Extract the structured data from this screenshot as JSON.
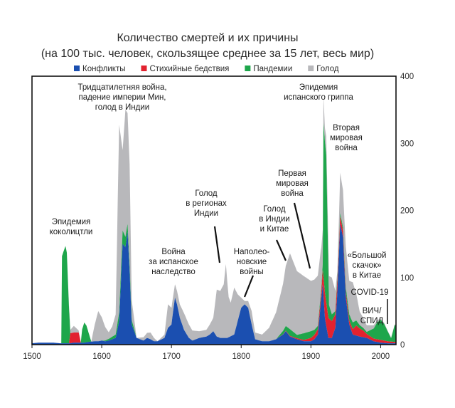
{
  "chart_data": {
    "type": "area",
    "stacked": true,
    "title": "Количество смертей и их причины",
    "subtitle": "(на 100 тыс. человек, скользящее среднее за 15 лет, весь мир)",
    "xlabel": "",
    "ylabel": "",
    "xlim": [
      1500,
      2022
    ],
    "ylim": [
      0,
      400
    ],
    "x_ticks": [
      1500,
      1600,
      1700,
      1800,
      1900,
      2000
    ],
    "y_ticks": [
      0,
      100,
      200,
      300,
      400
    ],
    "y_axis_side": "right",
    "grid": false,
    "legend_position": "top",
    "legend": [
      {
        "name": "Конфликты",
        "color": "#1b4fb0"
      },
      {
        "name": "Стихийные бедствия",
        "color": "#e2222f"
      },
      {
        "name": "Пандемии",
        "color": "#1ea64b"
      },
      {
        "name": "Голод",
        "color": "#b8b8bb"
      }
    ],
    "series": [
      {
        "name": "Конфликты",
        "color": "#1b4fb0",
        "points": [
          [
            1500,
            2
          ],
          [
            1510,
            3
          ],
          [
            1520,
            3
          ],
          [
            1530,
            3
          ],
          [
            1540,
            2
          ],
          [
            1545,
            2
          ],
          [
            1550,
            2
          ],
          [
            1555,
            2
          ],
          [
            1560,
            3
          ],
          [
            1570,
            3
          ],
          [
            1575,
            3
          ],
          [
            1580,
            4
          ],
          [
            1590,
            5
          ],
          [
            1595,
            5
          ],
          [
            1600,
            6
          ],
          [
            1605,
            5
          ],
          [
            1610,
            6
          ],
          [
            1615,
            8
          ],
          [
            1620,
            10
          ],
          [
            1625,
            35
          ],
          [
            1630,
            150
          ],
          [
            1634,
            145
          ],
          [
            1637,
            168
          ],
          [
            1640,
            110
          ],
          [
            1643,
            30
          ],
          [
            1650,
            10
          ],
          [
            1655,
            8
          ],
          [
            1660,
            6
          ],
          [
            1665,
            10
          ],
          [
            1670,
            8
          ],
          [
            1675,
            5
          ],
          [
            1680,
            5
          ],
          [
            1690,
            10
          ],
          [
            1695,
            25
          ],
          [
            1700,
            30
          ],
          [
            1705,
            70
          ],
          [
            1708,
            60
          ],
          [
            1712,
            40
          ],
          [
            1718,
            22
          ],
          [
            1725,
            10
          ],
          [
            1730,
            6
          ],
          [
            1740,
            10
          ],
          [
            1750,
            12
          ],
          [
            1755,
            15
          ],
          [
            1760,
            20
          ],
          [
            1765,
            12
          ],
          [
            1770,
            10
          ],
          [
            1780,
            10
          ],
          [
            1790,
            15
          ],
          [
            1795,
            35
          ],
          [
            1800,
            55
          ],
          [
            1805,
            60
          ],
          [
            1810,
            55
          ],
          [
            1815,
            30
          ],
          [
            1820,
            8
          ],
          [
            1830,
            5
          ],
          [
            1840,
            5
          ],
          [
            1850,
            8
          ],
          [
            1860,
            15
          ],
          [
            1864,
            20
          ],
          [
            1870,
            12
          ],
          [
            1880,
            8
          ],
          [
            1890,
            5
          ],
          [
            1900,
            5
          ],
          [
            1905,
            8
          ],
          [
            1910,
            15
          ],
          [
            1914,
            60
          ],
          [
            1917,
            90
          ],
          [
            1920,
            40
          ],
          [
            1925,
            10
          ],
          [
            1930,
            10
          ],
          [
            1935,
            25
          ],
          [
            1938,
            80
          ],
          [
            1942,
            180
          ],
          [
            1946,
            160
          ],
          [
            1950,
            70
          ],
          [
            1955,
            30
          ],
          [
            1960,
            15
          ],
          [
            1970,
            12
          ],
          [
            1980,
            10
          ],
          [
            1990,
            5
          ],
          [
            2000,
            3
          ],
          [
            2010,
            2
          ],
          [
            2020,
            2
          ]
        ]
      },
      {
        "name": "Стихийные бедствия",
        "color": "#e2222f",
        "points": [
          [
            1500,
            0
          ],
          [
            1550,
            0
          ],
          [
            1553,
            0
          ],
          [
            1555,
            15
          ],
          [
            1560,
            15
          ],
          [
            1567,
            15
          ],
          [
            1570,
            0
          ],
          [
            1600,
            0
          ],
          [
            1700,
            0
          ],
          [
            1800,
            0
          ],
          [
            1850,
            0
          ],
          [
            1870,
            1
          ],
          [
            1890,
            2
          ],
          [
            1900,
            5
          ],
          [
            1910,
            8
          ],
          [
            1915,
            10
          ],
          [
            1920,
            38
          ],
          [
            1925,
            30
          ],
          [
            1930,
            25
          ],
          [
            1935,
            20
          ],
          [
            1940,
            12
          ],
          [
            1945,
            10
          ],
          [
            1950,
            8
          ],
          [
            1955,
            6
          ],
          [
            1960,
            8
          ],
          [
            1965,
            15
          ],
          [
            1970,
            12
          ],
          [
            1975,
            10
          ],
          [
            1980,
            6
          ],
          [
            1990,
            4
          ],
          [
            2000,
            4
          ],
          [
            2010,
            3
          ],
          [
            2020,
            2
          ]
        ]
      },
      {
        "name": "Пандемии",
        "color": "#1ea64b",
        "points": [
          [
            1500,
            0
          ],
          [
            1540,
            0
          ],
          [
            1542,
            0
          ],
          [
            1543,
            130
          ],
          [
            1548,
            145
          ],
          [
            1550,
            135
          ],
          [
            1555,
            0
          ],
          [
            1570,
            0
          ],
          [
            1572,
            20
          ],
          [
            1575,
            30
          ],
          [
            1578,
            25
          ],
          [
            1585,
            0
          ],
          [
            1600,
            0
          ],
          [
            1620,
            5
          ],
          [
            1630,
            20
          ],
          [
            1637,
            12
          ],
          [
            1645,
            5
          ],
          [
            1650,
            0
          ],
          [
            1700,
            0
          ],
          [
            1800,
            0
          ],
          [
            1850,
            0
          ],
          [
            1870,
            10
          ],
          [
            1880,
            5
          ],
          [
            1890,
            10
          ],
          [
            1900,
            10
          ],
          [
            1910,
            5
          ],
          [
            1915,
            5
          ],
          [
            1917,
            10
          ],
          [
            1918,
            230
          ],
          [
            1922,
            220
          ],
          [
            1926,
            20
          ],
          [
            1930,
            10
          ],
          [
            1935,
            5
          ],
          [
            1940,
            5
          ],
          [
            1945,
            5
          ],
          [
            1950,
            8
          ],
          [
            1960,
            10
          ],
          [
            1970,
            5
          ],
          [
            1980,
            3
          ],
          [
            1990,
            15
          ],
          [
            1995,
            25
          ],
          [
            2000,
            30
          ],
          [
            2005,
            25
          ],
          [
            2010,
            15
          ],
          [
            2015,
            5
          ],
          [
            2020,
            25
          ]
        ]
      },
      {
        "name": "Голод",
        "color": "#b8b8bb",
        "points": [
          [
            1500,
            0
          ],
          [
            1540,
            0
          ],
          [
            1550,
            0
          ],
          [
            1560,
            10
          ],
          [
            1570,
            0
          ],
          [
            1585,
            0
          ],
          [
            1590,
            25
          ],
          [
            1595,
            45
          ],
          [
            1600,
            35
          ],
          [
            1605,
            20
          ],
          [
            1610,
            10
          ],
          [
            1615,
            15
          ],
          [
            1620,
            30
          ],
          [
            1625,
            280
          ],
          [
            1630,
            120
          ],
          [
            1634,
            190
          ],
          [
            1637,
            165
          ],
          [
            1640,
            150
          ],
          [
            1643,
            30
          ],
          [
            1650,
            0
          ],
          [
            1660,
            5
          ],
          [
            1670,
            10
          ],
          [
            1680,
            0
          ],
          [
            1690,
            5
          ],
          [
            1695,
            35
          ],
          [
            1700,
            25
          ],
          [
            1705,
            20
          ],
          [
            1708,
            20
          ],
          [
            1712,
            20
          ],
          [
            1718,
            25
          ],
          [
            1725,
            20
          ],
          [
            1730,
            15
          ],
          [
            1740,
            10
          ],
          [
            1750,
            10
          ],
          [
            1755,
            15
          ],
          [
            1760,
            20
          ],
          [
            1765,
            70
          ],
          [
            1770,
            70
          ],
          [
            1775,
            80
          ],
          [
            1778,
            110
          ],
          [
            1782,
            60
          ],
          [
            1785,
            50
          ],
          [
            1790,
            70
          ],
          [
            1795,
            40
          ],
          [
            1800,
            15
          ],
          [
            1805,
            5
          ],
          [
            1810,
            10
          ],
          [
            1815,
            20
          ],
          [
            1820,
            10
          ],
          [
            1830,
            10
          ],
          [
            1840,
            20
          ],
          [
            1850,
            40
          ],
          [
            1860,
            70
          ],
          [
            1864,
            90
          ],
          [
            1870,
            113
          ],
          [
            1880,
            95
          ],
          [
            1890,
            85
          ],
          [
            1900,
            75
          ],
          [
            1905,
            75
          ],
          [
            1910,
            75
          ],
          [
            1914,
            65
          ],
          [
            1917,
            50
          ],
          [
            1920,
            20
          ],
          [
            1925,
            40
          ],
          [
            1930,
            55
          ],
          [
            1935,
            30
          ],
          [
            1938,
            10
          ],
          [
            1942,
            60
          ],
          [
            1946,
            55
          ],
          [
            1950,
            60
          ],
          [
            1955,
            50
          ],
          [
            1960,
            60
          ],
          [
            1965,
            40
          ],
          [
            1970,
            20
          ],
          [
            1980,
            10
          ],
          [
            1990,
            5
          ],
          [
            2000,
            2
          ],
          [
            2010,
            1
          ],
          [
            2020,
            1
          ]
        ]
      }
    ],
    "annotations": [
      {
        "lines": [
          "Эпидемия",
          "коколицтли"
        ],
        "x": 1548,
        "y": 150
      },
      {
        "lines": [
          "Тридцатилетняя война,",
          "падение империи Мин,",
          "голод в Индии"
        ],
        "x": 1634,
        "y": 340
      },
      {
        "lines": [
          "Война",
          "за испанское",
          "наследство"
        ],
        "x": 1705,
        "y": 100
      },
      {
        "lines": [
          "Голод",
          "в регионах",
          "Индии"
        ],
        "x": 1778,
        "y": 130
      },
      {
        "lines": [
          "Наполео-",
          "новские",
          "войны"
        ],
        "x": 1805,
        "y": 70
      },
      {
        "lines": [
          "Голод",
          "в Индии",
          "и Китае"
        ],
        "x": 1875,
        "y": 125
      },
      {
        "lines": [
          "Первая",
          "мировая",
          "война"
        ],
        "x": 1915,
        "y": 110
      },
      {
        "lines": [
          "Эпидемия",
          "испанского гриппа"
        ],
        "x": 1918,
        "y": 350
      },
      {
        "lines": [
          "Вторая",
          "мировая",
          "война"
        ],
        "x": 1945,
        "y": 270
      },
      {
        "lines": [
          "«Большой",
          "скачок»",
          "в Китае"
        ],
        "x": 1960,
        "y": 80
      },
      {
        "lines": [
          "COVID-19"
        ],
        "x": 2020,
        "y": 30
      },
      {
        "lines": [
          "ВИЧ/",
          "СПИД"
        ],
        "x": 2000,
        "y": 30
      }
    ]
  }
}
